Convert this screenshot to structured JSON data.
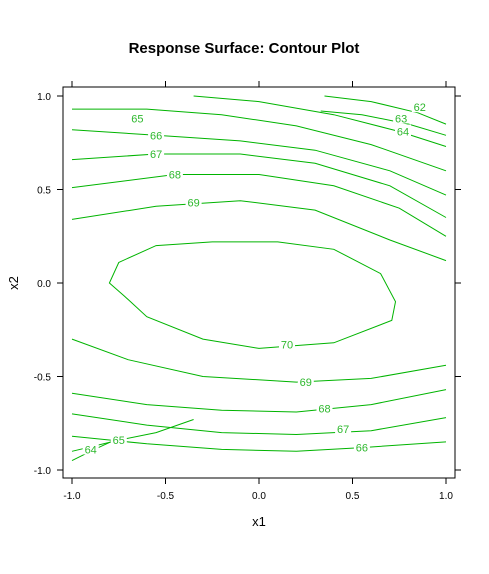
{
  "chart_data": {
    "type": "contour",
    "title": "Response Surface: Contour Plot",
    "xlabel": "x1",
    "ylabel": "x2",
    "xlim": [
      -1.0,
      1.0
    ],
    "ylim": [
      -1.0,
      1.0
    ],
    "xticks": [
      -1.0,
      -0.5,
      0.0,
      0.5,
      1.0
    ],
    "xtick_labels": [
      "-1.0",
      "-0.5",
      "0.0",
      "0.5",
      "1.0"
    ],
    "yticks": [
      -1.0,
      -0.5,
      0.0,
      0.5,
      1.0
    ],
    "ytick_labels": [
      "-1.0",
      "-0.5",
      "0.0",
      "0.5",
      "1.0"
    ],
    "line_color": "#00b400",
    "label_color": "#2db82d",
    "contours": [
      {
        "level": "62",
        "label_at": [
          0.86,
          0.94
        ],
        "points": [
          [
            0.35,
            1.0
          ],
          [
            0.6,
            0.97
          ],
          [
            0.85,
            0.91
          ],
          [
            1.0,
            0.85
          ]
        ]
      },
      {
        "level": "63",
        "label_at": [
          0.76,
          0.88
        ],
        "points": [
          [
            0.33,
            0.92
          ],
          [
            0.55,
            0.9
          ],
          [
            0.8,
            0.85
          ],
          [
            1.0,
            0.79
          ]
        ]
      },
      {
        "level": "64",
        "label_at": [
          0.77,
          0.81
        ],
        "points": [
          [
            -0.35,
            1.0
          ],
          [
            0.0,
            0.97
          ],
          [
            0.4,
            0.9
          ],
          [
            0.75,
            0.81
          ],
          [
            1.0,
            0.73
          ]
        ]
      },
      {
        "level": "64",
        "label_at": [
          -0.9,
          -0.89
        ],
        "points": [
          [
            -1.0,
            -0.95
          ],
          [
            -0.88,
            -0.89
          ],
          [
            -0.75,
            -0.83
          ]
        ]
      },
      {
        "level": "65",
        "label_at": [
          -0.65,
          0.88
        ],
        "points": [
          [
            -1.0,
            0.93
          ],
          [
            -0.6,
            0.93
          ],
          [
            -0.2,
            0.9
          ],
          [
            0.2,
            0.84
          ],
          [
            0.6,
            0.74
          ],
          [
            1.0,
            0.6
          ]
        ]
      },
      {
        "level": "65",
        "label_at": [
          -0.75,
          -0.84
        ],
        "points": [
          [
            -1.0,
            -0.9
          ],
          [
            -0.75,
            -0.84
          ],
          [
            -0.55,
            -0.8
          ],
          [
            -0.35,
            -0.73
          ]
        ]
      },
      {
        "level": "66",
        "label_at": [
          -0.55,
          0.79
        ],
        "points": [
          [
            -1.0,
            0.82
          ],
          [
            -0.55,
            0.79
          ],
          [
            -0.1,
            0.76
          ],
          [
            0.3,
            0.71
          ],
          [
            0.7,
            0.6
          ],
          [
            1.0,
            0.47
          ]
        ]
      },
      {
        "level": "66",
        "label_at": [
          0.55,
          -0.88
        ],
        "points": [
          [
            -1.0,
            -0.82
          ],
          [
            -0.6,
            -0.86
          ],
          [
            -0.2,
            -0.89
          ],
          [
            0.2,
            -0.9
          ],
          [
            0.55,
            -0.88
          ],
          [
            1.0,
            -0.85
          ]
        ]
      },
      {
        "level": "67",
        "label_at": [
          -0.55,
          0.69
        ],
        "points": [
          [
            -1.0,
            0.66
          ],
          [
            -0.55,
            0.69
          ],
          [
            -0.1,
            0.69
          ],
          [
            0.3,
            0.64
          ],
          [
            0.7,
            0.52
          ],
          [
            1.0,
            0.35
          ]
        ]
      },
      {
        "level": "67",
        "label_at": [
          0.45,
          -0.78
        ],
        "points": [
          [
            -1.0,
            -0.7
          ],
          [
            -0.6,
            -0.76
          ],
          [
            -0.2,
            -0.8
          ],
          [
            0.2,
            -0.81
          ],
          [
            0.6,
            -0.79
          ],
          [
            1.0,
            -0.72
          ]
        ]
      },
      {
        "level": "68",
        "label_at": [
          -0.45,
          0.58
        ],
        "points": [
          [
            -1.0,
            0.51
          ],
          [
            -0.45,
            0.58
          ],
          [
            0.0,
            0.58
          ],
          [
            0.4,
            0.52
          ],
          [
            0.75,
            0.4
          ],
          [
            1.0,
            0.25
          ]
        ]
      },
      {
        "level": "68",
        "label_at": [
          0.35,
          -0.67
        ],
        "points": [
          [
            -1.0,
            -0.59
          ],
          [
            -0.6,
            -0.65
          ],
          [
            -0.2,
            -0.68
          ],
          [
            0.2,
            -0.69
          ],
          [
            0.6,
            -0.65
          ],
          [
            1.0,
            -0.57
          ]
        ]
      },
      {
        "level": "69",
        "label_at": [
          -0.35,
          0.43
        ],
        "points": [
          [
            -1.0,
            0.34
          ],
          [
            -0.55,
            0.41
          ],
          [
            -0.1,
            0.44
          ],
          [
            0.3,
            0.39
          ],
          [
            0.7,
            0.23
          ],
          [
            1.0,
            0.12
          ]
        ]
      },
      {
        "level": "69",
        "label_at": [
          0.25,
          -0.53
        ],
        "points": [
          [
            -1.0,
            -0.3
          ],
          [
            -0.7,
            -0.41
          ],
          [
            -0.3,
            -0.5
          ],
          [
            0.2,
            -0.53
          ],
          [
            0.6,
            -0.51
          ],
          [
            1.0,
            -0.44
          ]
        ]
      },
      {
        "level": "70",
        "label_at": [
          0.15,
          -0.33
        ],
        "closed": true,
        "points": [
          [
            -0.75,
            0.11
          ],
          [
            -0.55,
            0.2
          ],
          [
            -0.25,
            0.22
          ],
          [
            0.1,
            0.22
          ],
          [
            0.4,
            0.18
          ],
          [
            0.65,
            0.05
          ],
          [
            0.73,
            -0.1
          ],
          [
            0.71,
            -0.2
          ],
          [
            0.4,
            -0.32
          ],
          [
            0.0,
            -0.35
          ],
          [
            -0.3,
            -0.3
          ],
          [
            -0.6,
            -0.18
          ],
          [
            -0.72,
            -0.07
          ],
          [
            -0.8,
            0.0
          ]
        ]
      }
    ]
  }
}
